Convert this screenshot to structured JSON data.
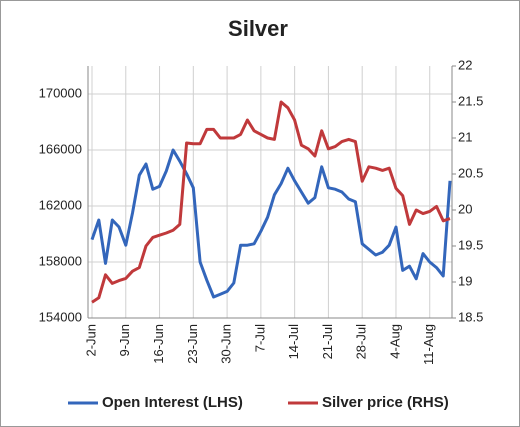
{
  "chart_data": {
    "type": "line",
    "title": "Silver",
    "categories": [
      "2-Jun",
      null,
      null,
      null,
      null,
      "9-Jun",
      null,
      null,
      null,
      null,
      "16-Jun",
      null,
      null,
      null,
      null,
      "23-Jun",
      null,
      null,
      null,
      null,
      "30-Jun",
      null,
      null,
      null,
      null,
      "7-Jul",
      null,
      null,
      null,
      null,
      "14-Jul",
      null,
      null,
      null,
      null,
      "21-Jul",
      null,
      null,
      null,
      null,
      "28-Jul",
      null,
      null,
      null,
      null,
      "4-Aug",
      null,
      null,
      null,
      null,
      "11-Aug",
      null,
      null,
      null
    ],
    "series": [
      {
        "name": "Open Interest (LHS)",
        "color": "#3366bb",
        "axis": "y",
        "values": [
          159600,
          161000,
          157900,
          161000,
          160500,
          159200,
          161500,
          164200,
          165000,
          163200,
          163400,
          164500,
          166000,
          165200,
          164300,
          163300,
          158000,
          156700,
          155500,
          155700,
          155900,
          156500,
          159200,
          159200,
          159300,
          160200,
          161200,
          162800,
          163600,
          164700,
          163800,
          163000,
          162200,
          162600,
          164800,
          163300,
          163200,
          163000,
          162500,
          162300,
          159300,
          158900,
          158500,
          158700,
          159200,
          160500,
          157400,
          157700,
          156800,
          158600,
          158000,
          157600,
          157000,
          163800
        ]
      },
      {
        "name": "Silver price (RHS)",
        "color": "#c0393b",
        "axis": "y2",
        "values": [
          18.72,
          18.78,
          19.1,
          18.98,
          19.02,
          19.05,
          19.15,
          19.2,
          19.5,
          19.62,
          19.65,
          19.68,
          19.72,
          19.8,
          20.93,
          20.92,
          20.92,
          21.12,
          21.12,
          21.0,
          21.0,
          21.0,
          21.05,
          21.25,
          21.1,
          21.05,
          21.0,
          20.98,
          21.5,
          21.42,
          21.25,
          20.9,
          20.85,
          20.75,
          21.1,
          20.85,
          20.88,
          20.95,
          20.98,
          20.95,
          20.4,
          20.6,
          20.58,
          20.55,
          20.58,
          20.3,
          20.2,
          19.8,
          20.0,
          19.95,
          19.98,
          20.05,
          19.85,
          19.88
        ]
      }
    ],
    "ylim": [
      154000,
      172000
    ],
    "yticks": [
      154000,
      158000,
      162000,
      166000,
      170000
    ],
    "y2lim": [
      18.5,
      22
    ],
    "y2ticks": [
      18.5,
      19,
      19.5,
      20,
      20.5,
      21,
      21.5,
      22
    ],
    "grid": true,
    "legend": "bottom"
  }
}
